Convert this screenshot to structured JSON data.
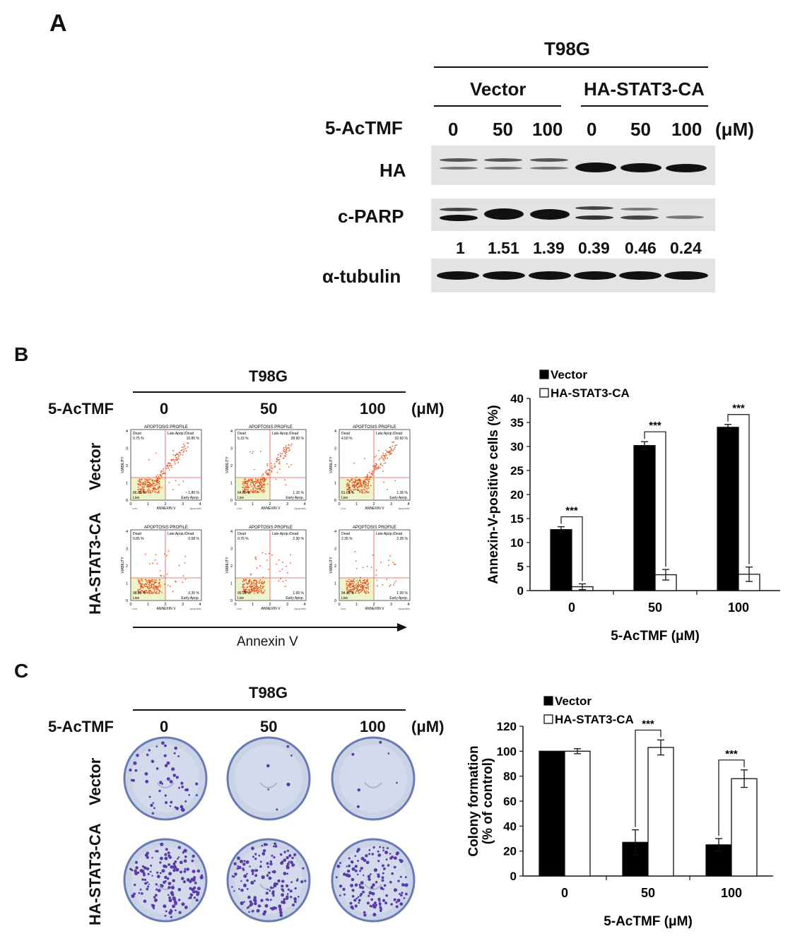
{
  "panel_a": {
    "letter": "A",
    "cell_line": "T98G",
    "groups": [
      "Vector",
      "HA-STAT3-CA"
    ],
    "treatment_label": "5-AcTMF",
    "doses": [
      "0",
      "50",
      "100",
      "0",
      "50",
      "100"
    ],
    "unit": "(μM)",
    "blot_rows": [
      "HA",
      "c-PARP",
      "α-tubulin"
    ],
    "quant_values": [
      "1",
      "1.51",
      "1.39",
      "0.39",
      "0.46",
      "0.24"
    ]
  },
  "panel_b": {
    "letter": "B",
    "cell_line": "T98G",
    "treatment_label": "5-AcTMF",
    "doses": [
      "0",
      "50",
      "100"
    ],
    "unit": "(μM)",
    "row_labels": [
      "Vector",
      "HA-STAT3-CA"
    ],
    "x_arrow_label": "Annexin V",
    "flow_plot": {
      "title": "APOPTOSIS PROFILE",
      "q_dead": "Dead",
      "q_late": "Late Apop./Dead",
      "q_live": "Live",
      "q_early": "Early Apop.",
      "x_axis": "ANNEXIN V",
      "y_axis": "VIABILITY",
      "x_left": "Live",
      "x_right": "Apoptotic",
      "ticks_x": [
        "0",
        "1",
        "2",
        "3",
        "4"
      ],
      "ticks_y": [
        "0",
        "1",
        "2",
        "3",
        "4"
      ]
    },
    "flow_values": [
      {
        "dead": "0.75 %",
        "late": "10.85 %",
        "live": "86.60 %",
        "early": "1.80 %"
      },
      {
        "dead": "5.15 %",
        "late": "28.90 %",
        "live": "64.80 %",
        "early": "1.15 %"
      },
      {
        "dead": "4.50 %",
        "late": "32.60 %",
        "live": "61.65 %",
        "early": "1.35 %"
      },
      {
        "dead": "0.85 %",
        "late": "0.58 %",
        "live": "98.20 %",
        "early": "0.35 %"
      },
      {
        "dead": "0.75 %",
        "late": "2.30 %",
        "live": "95.95 %",
        "early": "1.00 %"
      },
      {
        "dead": "2.35 %",
        "late": "2.35 %",
        "live": "94.30 %",
        "early": "1.00 %"
      }
    ]
  },
  "panel_c": {
    "letter": "C",
    "cell_line": "T98G",
    "treatment_label": "5-AcTMF",
    "doses": [
      "0",
      "50",
      "100"
    ],
    "unit": "(μM)",
    "row_labels": [
      "Vector",
      "HA-STAT3-CA"
    ]
  },
  "chart_data": [
    {
      "type": "bar",
      "categories": [
        "0",
        "50",
        "100"
      ],
      "series": [
        {
          "name": "Vector",
          "color": "#000000",
          "values": [
            12.7,
            30.2,
            34.0
          ],
          "errors": [
            0.6,
            0.8,
            0.6
          ]
        },
        {
          "name": "HA-STAT3-CA",
          "color": "#ffffff",
          "values": [
            0.8,
            3.3,
            3.4
          ],
          "errors": [
            0.6,
            1.1,
            1.5
          ]
        }
      ],
      "significance": [
        "***",
        "***",
        "***"
      ],
      "xlabel": "5-AcTMF (μM)",
      "ylabel": "Annexin-V-positive cells (%)",
      "ylim": [
        0,
        40
      ],
      "yticks": [
        "0",
        "5",
        "10",
        "15",
        "20",
        "25",
        "30",
        "35",
        "40"
      ],
      "legend": "top-left"
    },
    {
      "type": "bar",
      "categories": [
        "0",
        "50",
        "100"
      ],
      "series": [
        {
          "name": "Vector",
          "color": "#000000",
          "values": [
            100,
            27,
            25
          ],
          "errors": [
            0,
            10,
            5
          ]
        },
        {
          "name": "HA-STAT3-CA",
          "color": "#ffffff",
          "values": [
            100,
            103,
            78
          ],
          "errors": [
            2,
            6,
            7
          ]
        }
      ],
      "significance": [
        "",
        "***",
        "***"
      ],
      "xlabel": "5-AcTMF (μM)",
      "ylabel_line1": "Colony formation",
      "ylabel_line2": "(% of control)",
      "ylim": [
        0,
        120
      ],
      "yticks": [
        "0",
        "20",
        "40",
        "60",
        "80",
        "100",
        "120"
      ],
      "legend": "top-left"
    }
  ]
}
